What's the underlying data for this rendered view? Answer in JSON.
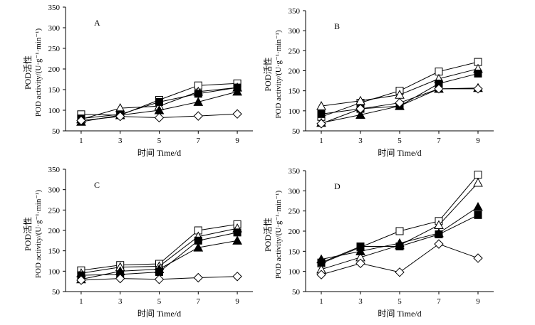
{
  "chart_data": [
    {
      "type": "line",
      "panel_label": "A",
      "title": "",
      "xlabel": "时间 Time/d",
      "ylabel_cn": "POD活性",
      "ylabel_en": "POD activity/(U·g⁻¹·min⁻¹)",
      "x": [
        1,
        3,
        5,
        7,
        9
      ],
      "xlim": [
        0.2,
        9.8
      ],
      "ylim": [
        50,
        350
      ],
      "yticks": [
        50,
        100,
        150,
        200,
        250,
        300,
        350
      ],
      "grid": false,
      "series": [
        {
          "name": "open-square",
          "marker": "open-square",
          "values": [
            90,
            88,
            125,
            160,
            165
          ]
        },
        {
          "name": "open-triangle",
          "marker": "open-triangle",
          "values": [
            78,
            105,
            110,
            145,
            155
          ]
        },
        {
          "name": "filled-square",
          "marker": "filled-square",
          "values": [
            80,
            90,
            120,
            140,
            155
          ]
        },
        {
          "name": "filled-triangle",
          "marker": "filled-triangle",
          "values": [
            72,
            88,
            100,
            120,
            145
          ]
        },
        {
          "name": "open-diamond",
          "marker": "open-diamond",
          "values": [
            75,
            85,
            82,
            86,
            91
          ]
        }
      ]
    },
    {
      "type": "line",
      "panel_label": "B",
      "title": "",
      "xlabel": "时间 Time/d",
      "ylabel_cn": "POD活性",
      "ylabel_en": "POD activity/(U·g⁻¹·min⁻¹)",
      "x": [
        1,
        3,
        5,
        7,
        9
      ],
      "xlim": [
        0.2,
        9.8
      ],
      "ylim": [
        50,
        350
      ],
      "yticks": [
        50,
        100,
        150,
        200,
        250,
        300,
        350
      ],
      "grid": false,
      "series": [
        {
          "name": "open-square",
          "marker": "open-square",
          "values": [
            85,
            120,
            150,
            198,
            222
          ]
        },
        {
          "name": "open-triangle",
          "marker": "open-triangle",
          "values": [
            112,
            125,
            140,
            180,
            205
          ]
        },
        {
          "name": "filled-square",
          "marker": "filled-square",
          "values": [
            92,
            105,
            112,
            168,
            193
          ]
        },
        {
          "name": "filled-triangle",
          "marker": "filled-triangle",
          "values": [
            70,
            90,
            112,
            155,
            157
          ]
        },
        {
          "name": "open-diamond",
          "marker": "open-diamond",
          "values": [
            68,
            105,
            120,
            155,
            155
          ]
        }
      ]
    },
    {
      "type": "line",
      "panel_label": "C",
      "title": "",
      "xlabel": "时间 Time/d",
      "ylabel_cn": "POD活性",
      "ylabel_en": "POD activity/(U·g⁻¹·min⁻¹)",
      "x": [
        1,
        3,
        5,
        7,
        9
      ],
      "xlim": [
        0.2,
        9.8
      ],
      "ylim": [
        50,
        350
      ],
      "yticks": [
        50,
        100,
        150,
        200,
        250,
        300,
        350
      ],
      "grid": false,
      "series": [
        {
          "name": "open-square",
          "marker": "open-square",
          "values": [
            102,
            115,
            118,
            200,
            215
          ]
        },
        {
          "name": "open-triangle",
          "marker": "open-triangle",
          "values": [
            95,
            110,
            112,
            185,
            205
          ]
        },
        {
          "name": "filled-square",
          "marker": "filled-square",
          "values": [
            90,
            92,
            98,
            175,
            195
          ]
        },
        {
          "name": "filled-triangle",
          "marker": "filled-triangle",
          "values": [
            80,
            100,
            105,
            158,
            175
          ]
        },
        {
          "name": "open-diamond",
          "marker": "open-diamond",
          "values": [
            78,
            82,
            80,
            84,
            87
          ]
        }
      ]
    },
    {
      "type": "line",
      "panel_label": "D",
      "title": "",
      "xlabel": "时间 Time/d",
      "ylabel_cn": "POD活性",
      "ylabel_en": "POD activity/(U·g⁻¹·min⁻¹)",
      "x": [
        1,
        3,
        5,
        7,
        9
      ],
      "xlim": [
        0.2,
        9.8
      ],
      "ylim": [
        50,
        350
      ],
      "yticks": [
        50,
        100,
        150,
        200,
        250,
        300,
        350
      ],
      "grid": false,
      "series": [
        {
          "name": "open-square",
          "marker": "open-square",
          "values": [
            120,
            160,
            200,
            225,
            340
          ]
        },
        {
          "name": "open-triangle",
          "marker": "open-triangle",
          "values": [
            105,
            135,
            165,
            215,
            320
          ]
        },
        {
          "name": "filled-square",
          "marker": "filled-square",
          "values": [
            122,
            162,
            162,
            192,
            240
          ]
        },
        {
          "name": "filled-triangle",
          "marker": "filled-triangle",
          "values": [
            130,
            150,
            170,
            195,
            260
          ]
        },
        {
          "name": "open-diamond",
          "marker": "open-diamond",
          "values": [
            92,
            120,
            98,
            168,
            133
          ]
        }
      ]
    }
  ]
}
